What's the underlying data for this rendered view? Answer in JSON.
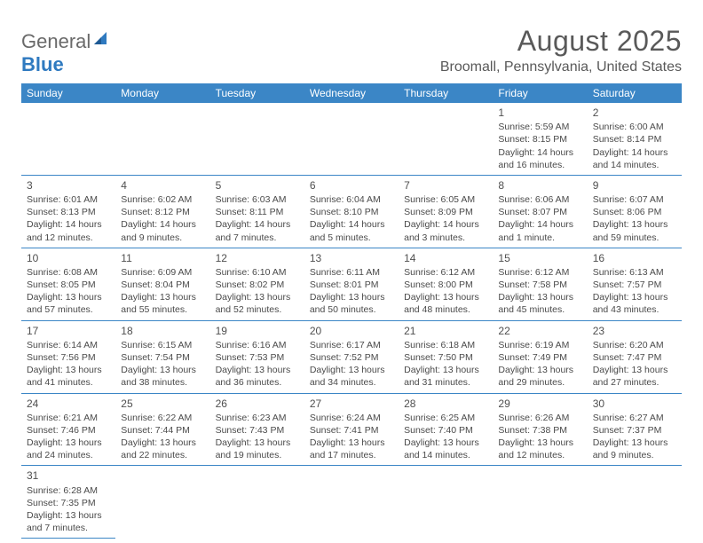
{
  "logo": {
    "line1": "General",
    "line2": "Blue"
  },
  "title": "August 2025",
  "location": "Broomall, Pennsylvania, United States",
  "colors": {
    "header_bg": "#3b86c6",
    "header_text": "#ffffff",
    "cell_border": "#3b86c6",
    "text": "#4a4a4a",
    "logo_blue": "#2f7ac0"
  },
  "weekdays": [
    "Sunday",
    "Monday",
    "Tuesday",
    "Wednesday",
    "Thursday",
    "Friday",
    "Saturday"
  ],
  "weeks": [
    [
      null,
      null,
      null,
      null,
      null,
      {
        "n": "1",
        "sr": "5:59 AM",
        "ss": "8:15 PM",
        "dl": "14 hours and 16 minutes."
      },
      {
        "n": "2",
        "sr": "6:00 AM",
        "ss": "8:14 PM",
        "dl": "14 hours and 14 minutes."
      }
    ],
    [
      {
        "n": "3",
        "sr": "6:01 AM",
        "ss": "8:13 PM",
        "dl": "14 hours and 12 minutes."
      },
      {
        "n": "4",
        "sr": "6:02 AM",
        "ss": "8:12 PM",
        "dl": "14 hours and 9 minutes."
      },
      {
        "n": "5",
        "sr": "6:03 AM",
        "ss": "8:11 PM",
        "dl": "14 hours and 7 minutes."
      },
      {
        "n": "6",
        "sr": "6:04 AM",
        "ss": "8:10 PM",
        "dl": "14 hours and 5 minutes."
      },
      {
        "n": "7",
        "sr": "6:05 AM",
        "ss": "8:09 PM",
        "dl": "14 hours and 3 minutes."
      },
      {
        "n": "8",
        "sr": "6:06 AM",
        "ss": "8:07 PM",
        "dl": "14 hours and 1 minute."
      },
      {
        "n": "9",
        "sr": "6:07 AM",
        "ss": "8:06 PM",
        "dl": "13 hours and 59 minutes."
      }
    ],
    [
      {
        "n": "10",
        "sr": "6:08 AM",
        "ss": "8:05 PM",
        "dl": "13 hours and 57 minutes."
      },
      {
        "n": "11",
        "sr": "6:09 AM",
        "ss": "8:04 PM",
        "dl": "13 hours and 55 minutes."
      },
      {
        "n": "12",
        "sr": "6:10 AM",
        "ss": "8:02 PM",
        "dl": "13 hours and 52 minutes."
      },
      {
        "n": "13",
        "sr": "6:11 AM",
        "ss": "8:01 PM",
        "dl": "13 hours and 50 minutes."
      },
      {
        "n": "14",
        "sr": "6:12 AM",
        "ss": "8:00 PM",
        "dl": "13 hours and 48 minutes."
      },
      {
        "n": "15",
        "sr": "6:12 AM",
        "ss": "7:58 PM",
        "dl": "13 hours and 45 minutes."
      },
      {
        "n": "16",
        "sr": "6:13 AM",
        "ss": "7:57 PM",
        "dl": "13 hours and 43 minutes."
      }
    ],
    [
      {
        "n": "17",
        "sr": "6:14 AM",
        "ss": "7:56 PM",
        "dl": "13 hours and 41 minutes."
      },
      {
        "n": "18",
        "sr": "6:15 AM",
        "ss": "7:54 PM",
        "dl": "13 hours and 38 minutes."
      },
      {
        "n": "19",
        "sr": "6:16 AM",
        "ss": "7:53 PM",
        "dl": "13 hours and 36 minutes."
      },
      {
        "n": "20",
        "sr": "6:17 AM",
        "ss": "7:52 PM",
        "dl": "13 hours and 34 minutes."
      },
      {
        "n": "21",
        "sr": "6:18 AM",
        "ss": "7:50 PM",
        "dl": "13 hours and 31 minutes."
      },
      {
        "n": "22",
        "sr": "6:19 AM",
        "ss": "7:49 PM",
        "dl": "13 hours and 29 minutes."
      },
      {
        "n": "23",
        "sr": "6:20 AM",
        "ss": "7:47 PM",
        "dl": "13 hours and 27 minutes."
      }
    ],
    [
      {
        "n": "24",
        "sr": "6:21 AM",
        "ss": "7:46 PM",
        "dl": "13 hours and 24 minutes."
      },
      {
        "n": "25",
        "sr": "6:22 AM",
        "ss": "7:44 PM",
        "dl": "13 hours and 22 minutes."
      },
      {
        "n": "26",
        "sr": "6:23 AM",
        "ss": "7:43 PM",
        "dl": "13 hours and 19 minutes."
      },
      {
        "n": "27",
        "sr": "6:24 AM",
        "ss": "7:41 PM",
        "dl": "13 hours and 17 minutes."
      },
      {
        "n": "28",
        "sr": "6:25 AM",
        "ss": "7:40 PM",
        "dl": "13 hours and 14 minutes."
      },
      {
        "n": "29",
        "sr": "6:26 AM",
        "ss": "7:38 PM",
        "dl": "13 hours and 12 minutes."
      },
      {
        "n": "30",
        "sr": "6:27 AM",
        "ss": "7:37 PM",
        "dl": "13 hours and 9 minutes."
      }
    ],
    [
      {
        "n": "31",
        "sr": "6:28 AM",
        "ss": "7:35 PM",
        "dl": "13 hours and 7 minutes."
      },
      null,
      null,
      null,
      null,
      null,
      null
    ]
  ],
  "labels": {
    "sunrise": "Sunrise:",
    "sunset": "Sunset:",
    "daylight": "Daylight:"
  }
}
